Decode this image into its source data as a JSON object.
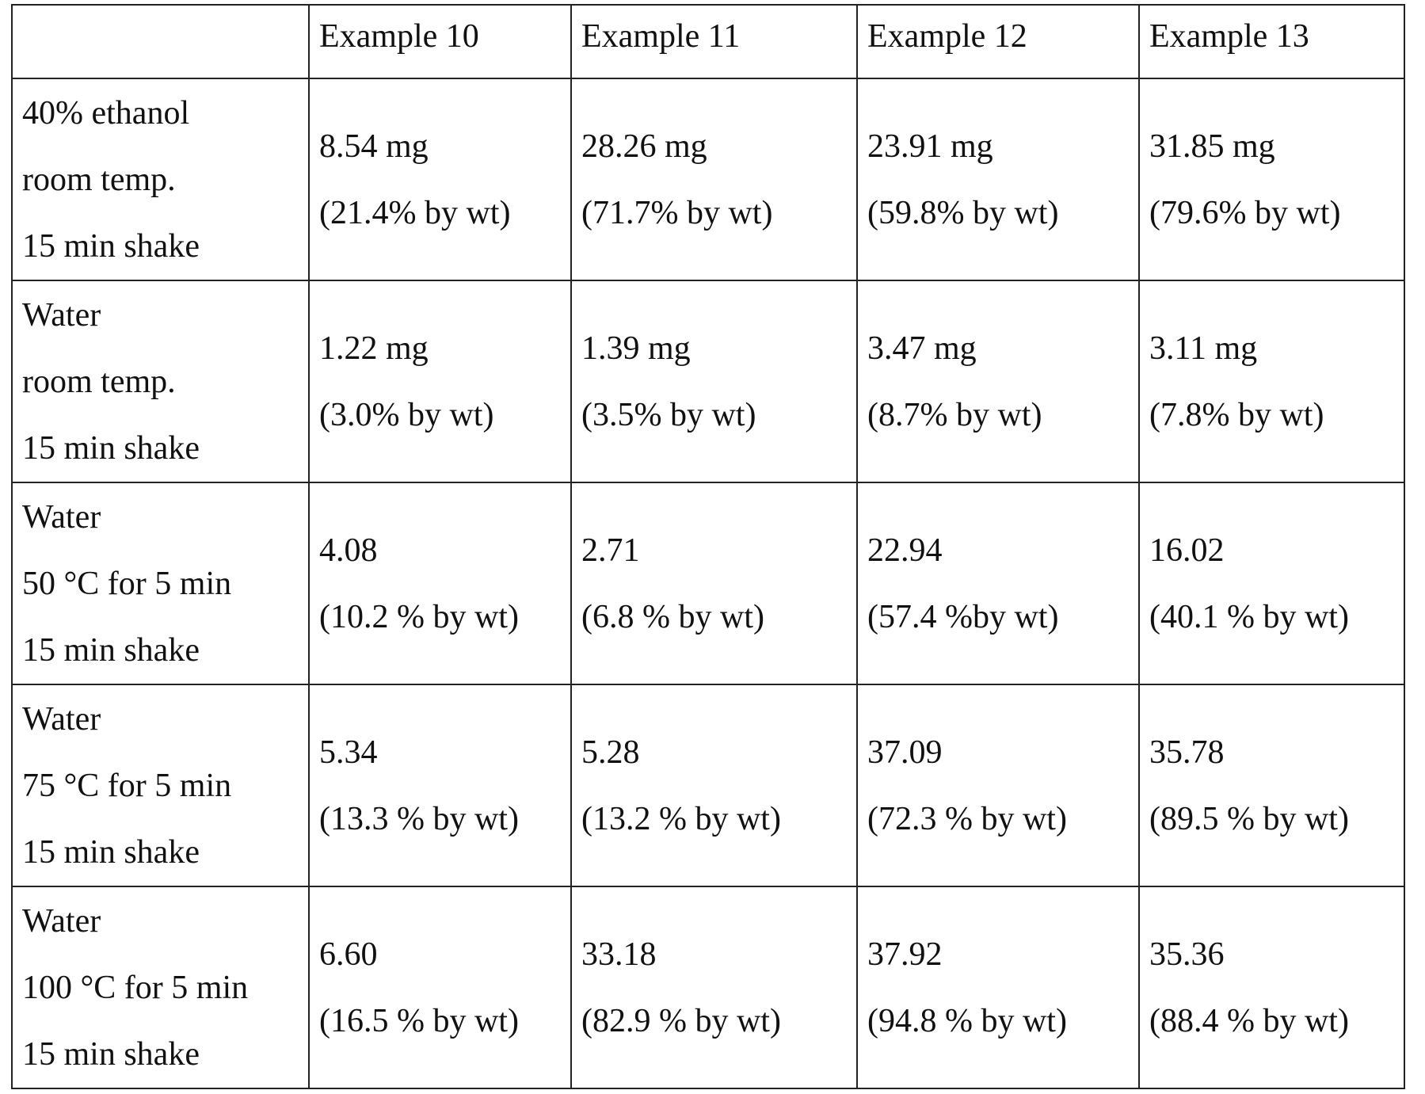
{
  "table": {
    "headers": [
      "",
      "Example 10",
      "Example 11",
      "Example 12",
      "Example 13"
    ],
    "rows": [
      {
        "label": [
          "40% ethanol",
          "room temp.",
          "15 min shake"
        ],
        "cells": [
          [
            "8.54 mg",
            "(21.4% by wt)"
          ],
          [
            "28.26 mg",
            "(71.7% by wt)"
          ],
          [
            "23.91 mg",
            "(59.8% by wt)"
          ],
          [
            "31.85 mg",
            "(79.6% by wt)"
          ]
        ]
      },
      {
        "label": [
          "Water",
          "room temp.",
          "15 min shake"
        ],
        "cells": [
          [
            "1.22 mg",
            "(3.0% by wt)"
          ],
          [
            "1.39 mg",
            "(3.5% by wt)"
          ],
          [
            "3.47 mg",
            "(8.7% by wt)"
          ],
          [
            "3.11 mg",
            "(7.8% by wt)"
          ]
        ]
      },
      {
        "label": [
          "Water",
          "50 °C for 5 min",
          "15 min shake"
        ],
        "cells": [
          [
            "4.08",
            "(10.2 % by wt)"
          ],
          [
            "2.71",
            "(6.8 % by wt)"
          ],
          [
            "22.94",
            "(57.4 %by wt)"
          ],
          [
            "16.02",
            "(40.1 % by wt)"
          ]
        ]
      },
      {
        "label": [
          "Water",
          "75 °C for 5 min",
          "15 min shake"
        ],
        "cells": [
          [
            "5.34",
            "(13.3 % by wt)"
          ],
          [
            "5.28",
            "(13.2 % by wt)"
          ],
          [
            "37.09",
            "(72.3 % by wt)"
          ],
          [
            "35.78",
            "(89.5 % by wt)"
          ]
        ]
      },
      {
        "label": [
          "Water",
          "100 °C for 5 min",
          "15 min shake"
        ],
        "cells": [
          [
            "6.60",
            "(16.5 % by wt)"
          ],
          [
            "33.18",
            "(82.9 % by wt)"
          ],
          [
            "37.92",
            "(94.8 % by wt)"
          ],
          [
            "35.36",
            "(88.4 % by wt)"
          ]
        ]
      }
    ]
  }
}
